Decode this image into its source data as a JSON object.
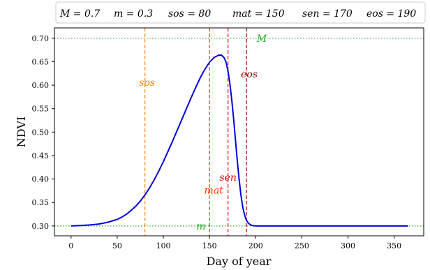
{
  "chart_data": {
    "type": "line",
    "xlabel": "Day of year",
    "ylabel": "NDVI",
    "xlim": [
      -18,
      382
    ],
    "ylim": [
      0.279,
      0.722
    ],
    "x_ticks": [
      0,
      50,
      100,
      150,
      200,
      250,
      300,
      350
    ],
    "y_ticks": [
      0.3,
      0.35,
      0.4,
      0.45,
      0.5,
      0.55,
      0.6,
      0.65,
      0.7
    ],
    "y_tick_labels": [
      "0.30",
      "0.35",
      "0.40",
      "0.45",
      "0.50",
      "0.55",
      "0.60",
      "0.65",
      "0.70"
    ],
    "grid": false,
    "legend": {
      "placement": "top",
      "entries": [
        "M = 0.7",
        "m = 0.3",
        "sos = 80",
        "mat = 150",
        "sen = 170",
        "eos = 190"
      ]
    },
    "series": [
      {
        "color": "#0000dd",
        "x": [
          0,
          10,
          20,
          30,
          40,
          50,
          55,
          60,
          65,
          70,
          75,
          80,
          85,
          90,
          95,
          100,
          105,
          110,
          115,
          120,
          125,
          130,
          135,
          140,
          145,
          150,
          155,
          160,
          163,
          166,
          168,
          170,
          172,
          174,
          176,
          178,
          180,
          182,
          184,
          186,
          188,
          190,
          192,
          194,
          196,
          200,
          205,
          210,
          220,
          250,
          300,
          365
        ],
        "y": [
          0.3,
          0.301,
          0.302,
          0.304,
          0.308,
          0.314,
          0.319,
          0.325,
          0.333,
          0.342,
          0.353,
          0.366,
          0.381,
          0.398,
          0.417,
          0.437,
          0.459,
          0.481,
          0.504,
          0.527,
          0.55,
          0.573,
          0.595,
          0.616,
          0.634,
          0.649,
          0.659,
          0.664,
          0.664,
          0.658,
          0.648,
          0.63,
          0.604,
          0.57,
          0.53,
          0.485,
          0.44,
          0.4,
          0.366,
          0.34,
          0.323,
          0.312,
          0.306,
          0.303,
          0.301,
          0.3,
          0.3,
          0.3,
          0.3,
          0.3,
          0.3,
          0.3
        ]
      }
    ],
    "hlines": [
      {
        "y": 0.7,
        "color": "#22aa22",
        "label": "M"
      },
      {
        "y": 0.3,
        "color": "#22aa22",
        "label": "m"
      }
    ],
    "vlines": [
      {
        "x": 80,
        "color": "#ff8000",
        "label": "sos",
        "label_y": 0.606
      },
      {
        "x": 150,
        "color": "#ff3300",
        "label": "mat",
        "label_y": 0.376
      },
      {
        "x": 170,
        "color": "#dd0000",
        "label": "sen",
        "label_y": 0.404
      },
      {
        "x": 190,
        "color": "#990000",
        "label": "eos",
        "label_y": 0.624
      }
    ]
  }
}
